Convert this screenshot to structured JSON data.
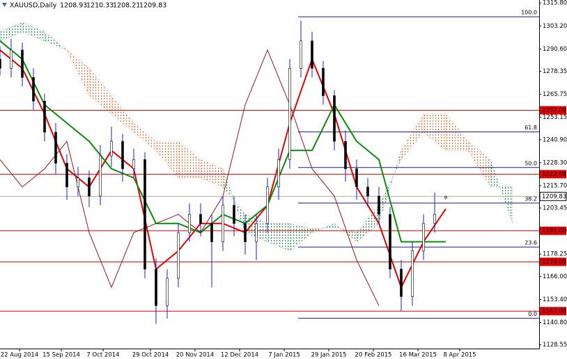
{
  "chart_data": {
    "type": "candlestick",
    "symbol": "XAUUSD,Daily",
    "x": [
      0,
      4,
      8,
      12,
      16,
      20,
      24,
      28,
      32,
      36,
      40,
      44,
      48,
      52,
      56,
      60,
      64,
      68,
      72,
      76,
      80,
      84,
      88,
      92,
      96,
      100,
      104,
      108,
      112,
      116,
      120,
      124,
      128,
      132,
      136,
      140,
      144,
      148,
      152,
      156,
      160
    ],
    "open": [
      1285,
      1280,
      1290,
      1275,
      1262,
      1245,
      1228,
      1215,
      1220,
      1210,
      1232,
      1240,
      1225,
      1230,
      1170,
      1150,
      1165,
      1190,
      1200,
      1195,
      1185,
      1205,
      1195,
      1185,
      1195,
      1215,
      1230,
      1280,
      1295,
      1280,
      1265,
      1240,
      1225,
      1215,
      1210,
      1200,
      1170,
      1155,
      1180,
      1195,
      1208.93
    ],
    "high": [
      1292,
      1296,
      1294,
      1280,
      1266,
      1250,
      1233,
      1226,
      1224,
      1238,
      1248,
      1244,
      1236,
      1234,
      1176,
      1170,
      1195,
      1206,
      1206,
      1200,
      1210,
      1210,
      1200,
      1200,
      1220,
      1236,
      1285,
      1306,
      1300,
      1284,
      1268,
      1246,
      1230,
      1220,
      1215,
      1204,
      1175,
      1185,
      1200,
      1212,
      1210.33
    ],
    "low": [
      1276,
      1275,
      1270,
      1257,
      1240,
      1222,
      1208,
      1210,
      1204,
      1205,
      1226,
      1218,
      1220,
      1165,
      1140,
      1143,
      1160,
      1185,
      1188,
      1160,
      1180,
      1188,
      1178,
      1175,
      1190,
      1208,
      1225,
      1275,
      1275,
      1260,
      1235,
      1218,
      1208,
      1204,
      1195,
      1165,
      1147,
      1150,
      1175,
      1190,
      1208.21
    ],
    "close": [
      1280,
      1290,
      1275,
      1262,
      1245,
      1228,
      1215,
      1220,
      1210,
      1232,
      1240,
      1225,
      1230,
      1170,
      1150,
      1165,
      1190,
      1200,
      1195,
      1185,
      1205,
      1195,
      1185,
      1195,
      1215,
      1230,
      1280,
      1295,
      1280,
      1265,
      1240,
      1225,
      1215,
      1210,
      1200,
      1170,
      1155,
      1180,
      1195,
      1200,
      1209.83
    ],
    "candle_colors": {
      "wick": "#1a1adb",
      "up": "#ffffff",
      "down": "#000000"
    },
    "lines": [
      {
        "color": "#e00000",
        "width": 2,
        "x": [
          0,
          8,
          16,
          24,
          32,
          40,
          48,
          56,
          64,
          72,
          80,
          88,
          96,
          104,
          112,
          120,
          128,
          136,
          144,
          152,
          160
        ],
        "values": [
          1290,
          1280,
          1255,
          1225,
          1215,
          1235,
          1225,
          1170,
          1180,
          1195,
          1195,
          1190,
          1205,
          1250,
          1285,
          1255,
          1215,
          1195,
          1160,
          1185,
          1203
        ]
      },
      {
        "color": "#0a8a0a",
        "width": 2,
        "x": [
          0,
          8,
          16,
          24,
          32,
          40,
          48,
          56,
          64,
          72,
          80,
          88,
          96,
          104,
          112,
          120,
          128,
          136,
          144,
          152,
          160
        ],
        "values": [
          1295,
          1285,
          1260,
          1250,
          1240,
          1225,
          1220,
          1195,
          1195,
          1190,
          1200,
          1195,
          1205,
          1235,
          1235,
          1260,
          1240,
          1230,
          1185,
          1185,
          1185
        ]
      },
      {
        "color": "#8b1a1a",
        "width": 1,
        "x": [
          0,
          8,
          16,
          24,
          32,
          40,
          48,
          56,
          64,
          72,
          80,
          88,
          96,
          104,
          112,
          120,
          128,
          136
        ],
        "values": [
          1230,
          1215,
          1225,
          1240,
          1190,
          1160,
          1190,
          1195,
          1200,
          1190,
          1210,
          1260,
          1290,
          1260,
          1225,
          1210,
          1175,
          1150
        ]
      }
    ],
    "cloud": {
      "x": [
        0,
        8,
        16,
        24,
        32,
        40,
        48,
        56,
        64,
        72,
        80,
        88,
        96,
        104,
        112,
        120,
        128,
        136,
        144,
        152,
        160,
        168,
        176,
        184
      ],
      "span_a": [
        1300,
        1305,
        1300,
        1290,
        1265,
        1255,
        1245,
        1235,
        1220,
        1220,
        1215,
        1200,
        1195,
        1195,
        1192,
        1193,
        1190,
        1205,
        1230,
        1245,
        1235,
        1235,
        1215,
        1215
      ],
      "span_b": [
        1295,
        1300,
        1295,
        1290,
        1280,
        1265,
        1250,
        1240,
        1240,
        1230,
        1225,
        1190,
        1185,
        1180,
        1190,
        1195,
        1185,
        1195,
        1235,
        1255,
        1255,
        1240,
        1230,
        1195
      ],
      "colors": [
        "#2e8b57",
        "#e8703a"
      ]
    },
    "levels": [
      {
        "value": 1257,
        "label": "1257.00"
      },
      {
        "value": 1222,
        "label": "1222.00"
      },
      {
        "value": 1191,
        "label": "1191.00"
      },
      {
        "value": 1174,
        "label": "1174.00"
      },
      {
        "value": 1147,
        "label": "1147.00"
      }
    ],
    "level_color": "#e00000",
    "fib": {
      "start": 107,
      "high": 1308.2,
      "low": 1143.1,
      "color": "#1a1a7a",
      "levels": [
        {
          "value": 100,
          "label": "100.0"
        },
        {
          "value": 61.8,
          "label": "61.8"
        },
        {
          "value": 50,
          "label": "50.0"
        },
        {
          "value": 38.2,
          "label": "38.2"
        },
        {
          "value": 23.6,
          "label": "23.6"
        },
        {
          "value": 0,
          "label": "0.0"
        }
      ]
    },
    "xlim": [
      0,
      193.5
    ],
    "xticks": [
      {
        "value": 7,
        "label": "22 Aug 2014"
      },
      {
        "value": 22,
        "label": "15 Sep 2014"
      },
      {
        "value": 37,
        "label": "7 Oct 2014"
      },
      {
        "value": 54,
        "label": "29 Oct 2014"
      },
      {
        "value": 70,
        "label": "20 Nov 2014"
      },
      {
        "value": 86,
        "label": "12 Dec 2014"
      },
      {
        "value": 102,
        "label": "7 Jan 2015"
      },
      {
        "value": 118,
        "label": "29 Jan 2015"
      },
      {
        "value": 134,
        "label": "20 Feb 2015"
      },
      {
        "value": 150,
        "label": "16 Mar 2015"
      },
      {
        "value": 165,
        "label": "8 Apr 2015"
      }
    ],
    "ylim": [
      1126.5,
      1317.4
    ],
    "yticks": [
      {
        "value": 1315.8,
        "label": "1315.80"
      },
      {
        "value": 1303.2,
        "label": "1303.20"
      },
      {
        "value": 1290.6,
        "label": "1290.60"
      },
      {
        "value": 1278.35,
        "label": "1278.35"
      },
      {
        "value": 1265.75,
        "label": "1265.75"
      },
      {
        "value": 1253.15,
        "label": "1253.15"
      },
      {
        "value": 1240.9,
        "label": "1240.90"
      },
      {
        "value": 1228.3,
        "label": "1228.30"
      },
      {
        "value": 1215.7,
        "label": "1215.70"
      },
      {
        "value": 1203.45,
        "label": "1203.45"
      },
      {
        "value": 1191,
        "label": "1191.00"
      },
      {
        "value": 1178.25,
        "label": "1178.25"
      },
      {
        "value": 1166,
        "label": "1166.00"
      },
      {
        "value": 1153.4,
        "label": "1153.40"
      },
      {
        "value": 1140.8,
        "label": "1140.80"
      },
      {
        "value": 1128.55,
        "label": "1128.55"
      }
    ]
  }
}
